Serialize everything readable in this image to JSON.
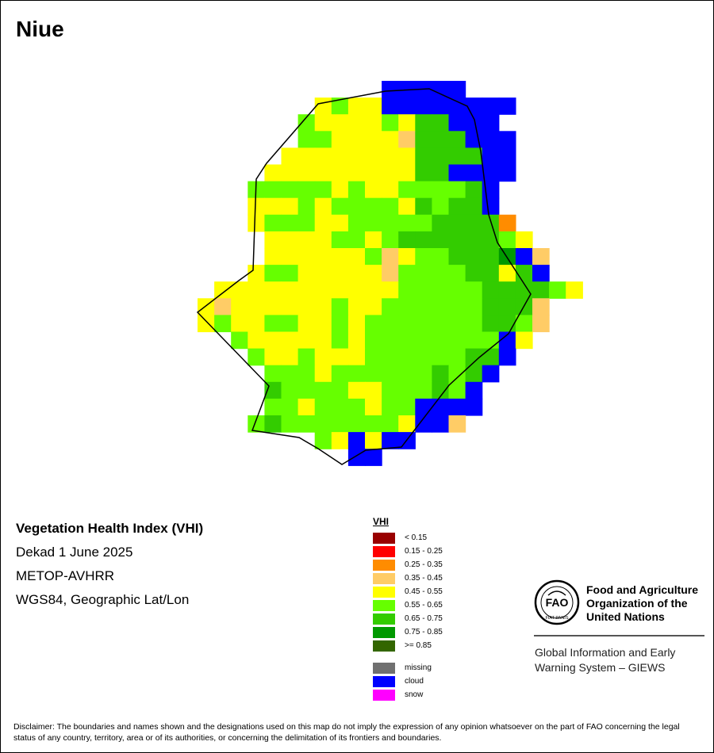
{
  "map": {
    "title": "Niue",
    "info": {
      "index_name": "Vegetation Health Index (VHI)",
      "dekad": "Dekad 1 June 2025",
      "sensor": "METOP-AVHRR",
      "projection": "WGS84, Geographic Lat/Lon"
    },
    "legend": {
      "title": "VHI",
      "classes": [
        {
          "label": "< 0.15",
          "color": "#990000"
        },
        {
          "label": "0.15 - 0.25",
          "color": "#ff0000"
        },
        {
          "label": "0.25 - 0.35",
          "color": "#ff8c00"
        },
        {
          "label": "0.35 - 0.45",
          "color": "#ffcc66"
        },
        {
          "label": "0.45 - 0.55",
          "color": "#ffff00"
        },
        {
          "label": "0.55 - 0.65",
          "color": "#66ff00"
        },
        {
          "label": "0.65 - 0.75",
          "color": "#33cc00"
        },
        {
          "label": "0.75 - 0.85",
          "color": "#009900"
        },
        {
          "label": ">= 0.85",
          "color": "#336600"
        }
      ],
      "special": [
        {
          "label": "missing",
          "color": "#707070"
        },
        {
          "label": "cloud",
          "color": "#0000ff"
        },
        {
          "label": "snow",
          "color": "#ff00ff"
        }
      ]
    },
    "cell_codes": {
      "Y": "#ffff00",
      "G": "#66ff00",
      "M": "#33cc00",
      "D": "#009900",
      "B": "#0000ff",
      "O": "#ff8c00",
      "P": "#ffcc66"
    },
    "grid": [
      "...........BBBBB.........",
      ".......YGYYBBBBBBBB......",
      "......GYYYYGYMMBBB.......",
      "......GGYYYYPMMMBBB......",
      ".....YYYYYYYYMMMMBB......",
      "....YYYYYYYYYMMBBBB......",
      "...GGGGGYGYYGGGGMB.......",
      "...YYYGYGGGGYMGMMB.......",
      "...YGGGYYGGGGGMMMMO......",
      "....YYYYGGYGMMMMMMGY.....",
      "....YYYYYYGPYGGMMMDBP....",
      "...YGGYYYYYPGGGGMMYMB....",
      ".YYYYYYYYYYYGGGGGMMMMGY..",
      "YPYYYYYYGYYGGGGGGMMMP....",
      "YGYYGGYYGYGGGGGGGMMGP....",
      "..GYYYYYGYGGGGGGGGBY.....",
      "...GYYGYYYGGGGGGMMB......",
      "....GGGYGGGGGGMGMB.......",
      "....MGGGGYYGGGMGB........",
      "....GGYGGGYGGBBBB........",
      "...GMGGGGGGGYBBP.........",
      ".......GYBYBB............",
      ".........BB.............."
    ]
  },
  "fao": {
    "logo_text": "FAO",
    "logo_motto": "FIAT PANIS",
    "name_lines": [
      "Food and Agriculture",
      "Organization of the",
      "United Nations"
    ],
    "giews_lines": [
      "Global Information and Early",
      "Warning System – GIEWS"
    ]
  },
  "disclaimer": "Disclaimer: The boundaries and names shown and the designations used on this map do not imply the expression of any opinion whatsoever on the part of FAO concerning the legal status of any country, territory, area or of its authorities, or concerning the delimitation of its frontiers and boundaries."
}
